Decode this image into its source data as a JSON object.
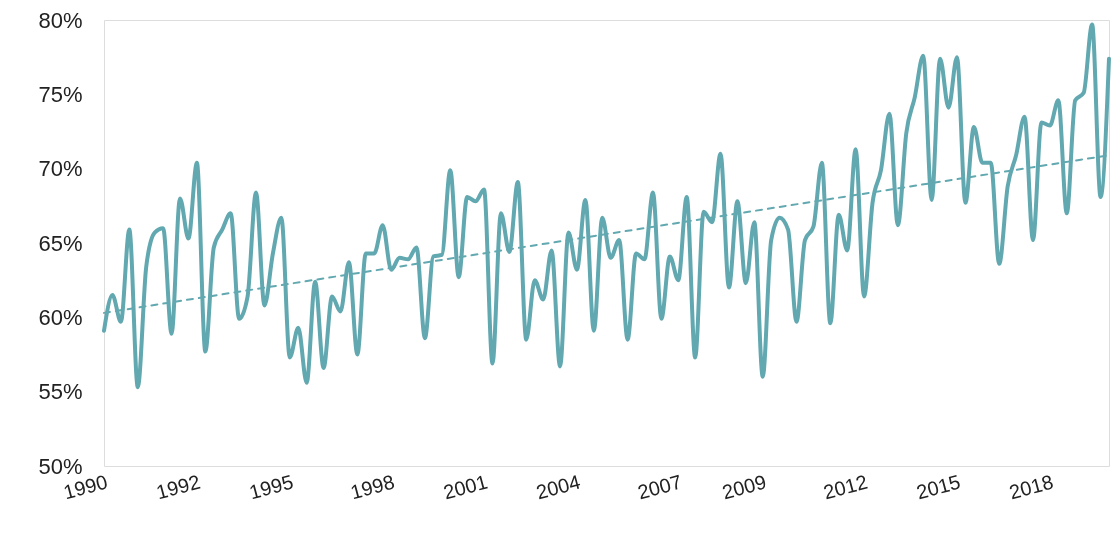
{
  "chart_data": {
    "type": "line",
    "categories": [
      "1990",
      null,
      null,
      null,
      null,
      null,
      null,
      null,
      null,
      null,
      null,
      "1992",
      null,
      null,
      null,
      null,
      null,
      null,
      null,
      null,
      null,
      null,
      "1995",
      null,
      null,
      null,
      null,
      null,
      null,
      null,
      null,
      null,
      null,
      null,
      "1998",
      null,
      null,
      null,
      null,
      null,
      null,
      null,
      null,
      null,
      null,
      "2001",
      null,
      null,
      null,
      null,
      null,
      null,
      null,
      null,
      null,
      null,
      "2004",
      null,
      null,
      null,
      null,
      null,
      null,
      null,
      null,
      null,
      null,
      null,
      "2007",
      null,
      null,
      null,
      null,
      null,
      null,
      null,
      null,
      null,
      "2009",
      null,
      null,
      null,
      null,
      null,
      null,
      null,
      null,
      null,
      null,
      null,
      "2012",
      null,
      null,
      null,
      null,
      null,
      null,
      null,
      null,
      null,
      null,
      "2015",
      null,
      null,
      null,
      null,
      null,
      null,
      null,
      null,
      null,
      null,
      "2018",
      null,
      null,
      null,
      null,
      null,
      null,
      null
    ],
    "series": [
      {
        "color": "#62a8b0",
        "line_style": "solid",
        "values": [
          59.1,
          61.5,
          59.7,
          65.9,
          55.3,
          63.4,
          65.7,
          66.0,
          58.9,
          68.0,
          65.3,
          70.4,
          57.7,
          64.7,
          65.9,
          67.0,
          59.9,
          61.4,
          68.4,
          60.8,
          64.3,
          66.7,
          57.3,
          59.3,
          55.6,
          62.4,
          56.6,
          61.4,
          60.4,
          63.7,
          57.5,
          64.3,
          64.3,
          66.2,
          63.2,
          64.0,
          63.9,
          64.7,
          58.6,
          64.1,
          64.2,
          69.9,
          62.7,
          68.1,
          67.8,
          68.6,
          56.9,
          67.0,
          64.4,
          69.1,
          58.5,
          62.5,
          61.2,
          64.5,
          56.7,
          65.7,
          63.2,
          67.9,
          59.1,
          66.7,
          64.0,
          65.2,
          58.5,
          64.3,
          63.9,
          68.4,
          59.9,
          64.1,
          62.5,
          68.1,
          57.3,
          67.1,
          66.4,
          71.0,
          62.0,
          67.8,
          62.3,
          66.4,
          56.0,
          65.2,
          66.7,
          65.9,
          59.7,
          65.2,
          66.1,
          70.4,
          59.6,
          66.9,
          64.5,
          71.3,
          61.4,
          67.7,
          69.9,
          73.7,
          66.2,
          72.4,
          74.8,
          77.6,
          67.9,
          77.4,
          74.1,
          77.5,
          67.7,
          72.8,
          70.4,
          70.4,
          63.6,
          68.8,
          70.9,
          73.5,
          65.2,
          73.1,
          72.9,
          74.6,
          67.0,
          74.6,
          75.1,
          79.7,
          68.1,
          77.4
        ]
      },
      {
        "color": "#62a8b0",
        "line_style": "dashed",
        "values": [
          60.3,
          null,
          null,
          null,
          null,
          null,
          null,
          null,
          null,
          null,
          null,
          null,
          null,
          null,
          null,
          null,
          null,
          null,
          null,
          null,
          null,
          null,
          null,
          null,
          null,
          null,
          null,
          null,
          null,
          null,
          null,
          null,
          null,
          null,
          null,
          null,
          null,
          null,
          null,
          null,
          null,
          null,
          null,
          null,
          null,
          null,
          null,
          null,
          null,
          null,
          null,
          null,
          null,
          null,
          null,
          null,
          null,
          null,
          null,
          null,
          null,
          null,
          null,
          null,
          null,
          null,
          null,
          null,
          null,
          null,
          null,
          null,
          null,
          null,
          null,
          null,
          null,
          null,
          null,
          null,
          null,
          null,
          null,
          null,
          null,
          null,
          null,
          null,
          null,
          null,
          null,
          null,
          null,
          null,
          null,
          null,
          null,
          null,
          null,
          null,
          null,
          null,
          null,
          null,
          null,
          null,
          null,
          null,
          null,
          null,
          null,
          null,
          null,
          null,
          null,
          null,
          null,
          null,
          null,
          70.9
        ]
      }
    ],
    "ylim": [
      50,
      80
    ],
    "yticks": [
      {
        "value": 50,
        "label": "50%"
      },
      {
        "value": 55,
        "label": "55%"
      },
      {
        "value": 60,
        "label": "60%"
      },
      {
        "value": 65,
        "label": "65%"
      },
      {
        "value": 70,
        "label": "70%"
      },
      {
        "value": 75,
        "label": "75%"
      },
      {
        "value": 80,
        "label": "80%"
      }
    ],
    "grid": false
  }
}
